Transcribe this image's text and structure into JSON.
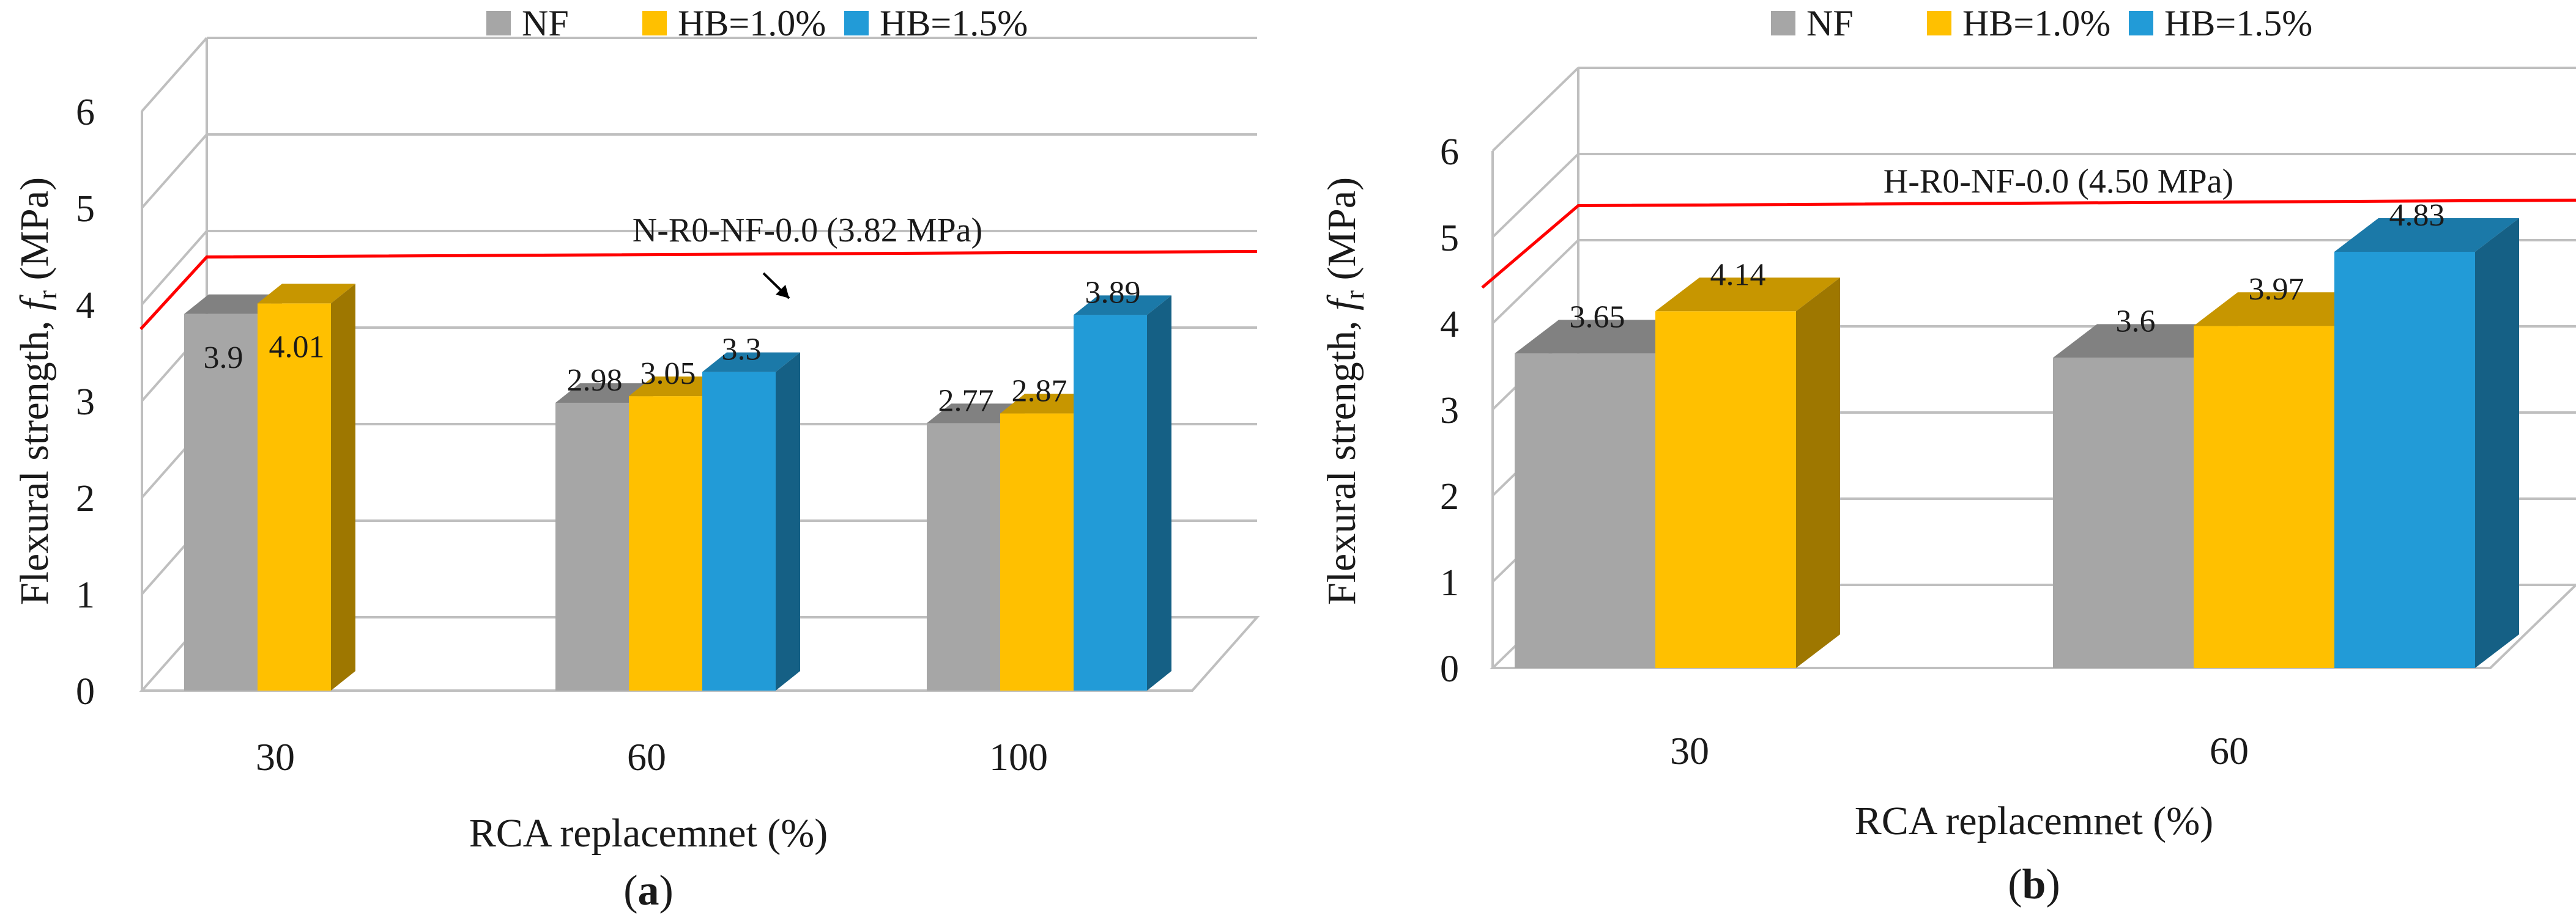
{
  "chart_data": [
    {
      "type": "bar",
      "panel_label": "a",
      "categories": [
        "30",
        "60",
        "100"
      ],
      "series": [
        {
          "name": "NF",
          "color": "#a6a6a6",
          "values": [
            3.9,
            2.98,
            2.77
          ]
        },
        {
          "name": "HB=1.0%",
          "color": "#ffc000",
          "values": [
            4.01,
            3.05,
            2.87
          ]
        },
        {
          "name": "HB=1.5%",
          "color": "#229bd7",
          "values": [
            null,
            3.3,
            3.89
          ]
        }
      ],
      "data_labels": [
        [
          "3.9",
          "2.98",
          "2.77"
        ],
        [
          "4.01",
          "3.05",
          "2.87"
        ],
        [
          "",
          "3.3",
          "3.89"
        ]
      ],
      "yticks": [
        "0",
        "1",
        "2",
        "3",
        "4",
        "5",
        "6"
      ],
      "xlabel": "RCA replacemnet (%)",
      "ylabel_main": "Flexural strength, ",
      "ylabel_symbol": "f",
      "ylabel_subscript": "r",
      "ylabel_unit": " (MPa)",
      "ylim": [
        0,
        6
      ],
      "reference_line": {
        "label": "N-R0-NF-0.0 (3.82 MPa)",
        "value": 3.82,
        "color": "#ff0000"
      },
      "legend_position": "top-center",
      "grid": true
    },
    {
      "type": "bar",
      "panel_label": "b",
      "categories": [
        "30",
        "60"
      ],
      "series": [
        {
          "name": "NF",
          "color": "#a6a6a6",
          "values": [
            3.65,
            3.6
          ]
        },
        {
          "name": "HB=1.0%",
          "color": "#ffc000",
          "values": [
            4.14,
            3.97
          ]
        },
        {
          "name": "HB=1.5%",
          "color": "#229bd7",
          "values": [
            null,
            4.83
          ]
        }
      ],
      "data_labels": [
        [
          "3.65",
          "3.6"
        ],
        [
          "4.14",
          "3.97"
        ],
        [
          "",
          "4.83"
        ]
      ],
      "yticks": [
        "0",
        "1",
        "2",
        "3",
        "4",
        "5",
        "6"
      ],
      "xlabel": "RCA replacemnet (%)",
      "ylabel_main": "Flexural strength, ",
      "ylabel_symbol": "f",
      "ylabel_subscript": "r",
      "ylabel_unit": " (MPa)",
      "ylim": [
        0,
        6
      ],
      "reference_line": {
        "label": "H-R0-NF-0.0 (4.50 MPa)",
        "value": 4.5,
        "color": "#ff0000"
      },
      "legend_position": "top-center",
      "grid": true
    }
  ]
}
